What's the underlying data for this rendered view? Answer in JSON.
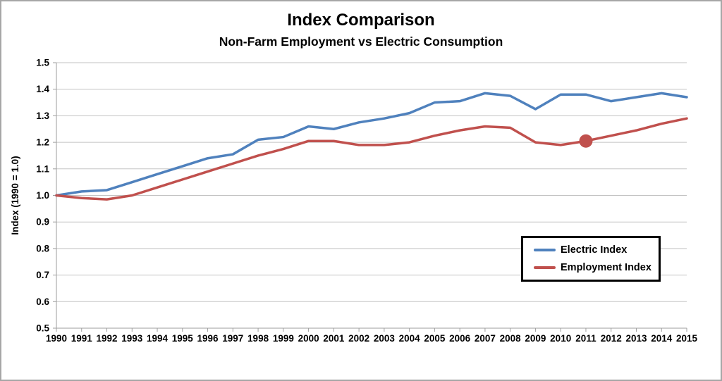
{
  "title": "Index Comparison",
  "subtitle": "Non-Farm Employment vs Electric Consumption",
  "chart_data": {
    "type": "line",
    "title": "Index Comparison",
    "subtitle": "Non-Farm Employment vs Electric Consumption",
    "xlabel": "",
    "ylabel": "Index (1990 = 1.0)",
    "x": [
      1990,
      1991,
      1992,
      1993,
      1994,
      1995,
      1996,
      1997,
      1998,
      1999,
      2000,
      2001,
      2002,
      2003,
      2004,
      2005,
      2006,
      2007,
      2008,
      2009,
      2010,
      2011,
      2012,
      2013,
      2014,
      2015
    ],
    "series": [
      {
        "name": "Electric Index",
        "color": "#4F81BD",
        "values": [
          1.0,
          1.015,
          1.02,
          1.05,
          1.08,
          1.11,
          1.14,
          1.155,
          1.21,
          1.22,
          1.26,
          1.25,
          1.275,
          1.29,
          1.31,
          1.35,
          1.355,
          1.385,
          1.375,
          1.325,
          1.38,
          1.38,
          1.355,
          1.37,
          1.385,
          1.37
        ]
      },
      {
        "name": "Employment Index",
        "color": "#C0504D",
        "values": [
          1.0,
          0.99,
          0.985,
          1.0,
          1.03,
          1.06,
          1.09,
          1.12,
          1.15,
          1.175,
          1.205,
          1.205,
          1.19,
          1.19,
          1.2,
          1.225,
          1.245,
          1.26,
          1.255,
          1.2,
          1.19,
          1.205,
          1.225,
          1.245,
          1.27,
          1.29
        ],
        "marker": {
          "year": 2011,
          "value": 1.205
        }
      }
    ],
    "ylim": [
      0.5,
      1.5
    ],
    "ytick_step": 0.1,
    "grid": "horizontal",
    "gridline_color": "#C3C3C3",
    "axis_color": "#9E9E9E",
    "legend_position": "inside-right",
    "legend": [
      "Electric Index",
      "Employment Index"
    ]
  }
}
